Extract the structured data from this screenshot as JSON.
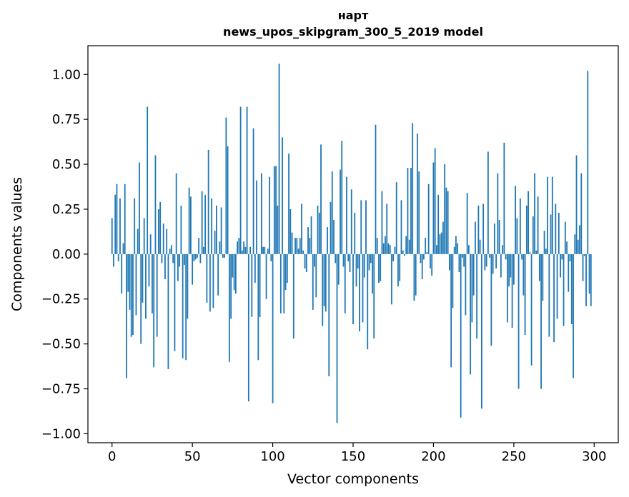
{
  "chart_data": {
    "type": "bar",
    "title": "нарт",
    "subtitle": "news_upos_skipgram_300_5_2019 model",
    "xlabel": "Vector components",
    "ylabel": "Components values",
    "xlim": [
      -15,
      315
    ],
    "ylim": [
      -1.05,
      1.16
    ],
    "xticks": [
      0,
      50,
      100,
      150,
      200,
      250,
      300
    ],
    "xtick_labels": [
      "0",
      "50",
      "100",
      "150",
      "200",
      "250",
      "300"
    ],
    "yticks": [
      -1.0,
      -0.75,
      -0.5,
      -0.25,
      0.0,
      0.25,
      0.5,
      0.75,
      1.0
    ],
    "ytick_labels": [
      "−1.00",
      "−0.75",
      "−0.50",
      "−0.25",
      "0.00",
      "0.25",
      "0.50",
      "0.75",
      "1.00"
    ],
    "grid": false,
    "bar_color": "#1f77b4",
    "values": [
      0.2,
      -0.07,
      0.33,
      0.39,
      -0.04,
      0.31,
      -0.22,
      0.06,
      0.39,
      -0.69,
      -0.21,
      -0.31,
      -0.46,
      -0.45,
      0.31,
      -0.34,
      0.14,
      0.51,
      -0.5,
      -0.27,
      0.2,
      -0.36,
      0.82,
      -0.18,
      0.11,
      -0.33,
      -0.63,
      0.55,
      -0.46,
      0.25,
      0.29,
      -0.05,
      0.17,
      -0.14,
      0.14,
      -0.64,
      0.03,
      0.05,
      -0.05,
      -0.54,
      0.45,
      -0.15,
      -0.07,
      0.27,
      -0.58,
      -0.06,
      -0.59,
      -0.36,
      0.37,
      0.32,
      -0.17,
      -0.04,
      -0.03,
      -0.02,
      0.09,
      -0.05,
      0.35,
      0.04,
      0.33,
      -0.27,
      0.58,
      -0.32,
      0.31,
      -0.3,
      0.13,
      0.27,
      -0.23,
      0.07,
      0.26,
      -0.02,
      -0.02,
      0.76,
      0.6,
      -0.6,
      -0.36,
      -0.13,
      -0.2,
      -0.22,
      0.07,
      0.09,
      0.82,
      0.02,
      0.07,
      0.04,
      0.82,
      -0.82,
      0.04,
      -0.35,
      0.7,
      -0.16,
      0.41,
      -0.59,
      -0.35,
      0.45,
      0.04,
      0.04,
      -0.25,
      0.03,
      0.43,
      -0.04,
      -0.83,
      0.49,
      0.49,
      0.27,
      1.06,
      -0.33,
      0.65,
      -0.33,
      -0.2,
      -0.16,
      0.56,
      0.25,
      0.12,
      -0.47,
      0.09,
      0.09,
      0.03,
      0.09,
      0.28,
      0.02,
      -0.08,
      -0.1,
      0.15,
      0.09,
      0.21,
      -0.31,
      -0.07,
      -0.24,
      0.27,
      0.23,
      0.61,
      -0.4,
      -0.29,
      -0.32,
      0.15,
      -0.68,
      0.29,
      0.46,
      0.19,
      -0.05,
      -0.94,
      -0.17,
      0.47,
      0.63,
      -0.07,
      -0.33,
      0.43,
      -0.04,
      -0.1,
      0.36,
      -0.39,
      0.23,
      -0.18,
      -0.08,
      -0.43,
      0.3,
      -0.38,
      -0.13,
      0.3,
      -0.53,
      -0.09,
      -0.05,
      -0.22,
      -0.47,
      0.72,
      0.09,
      -0.16,
      -0.15,
      0.35,
      0.06,
      0.1,
      0.28,
      0.06,
      0.05,
      -0.28,
      -0.04,
      0.04,
      0.4,
      -0.18,
      -0.15,
      0.3,
      0.02,
      -0.01,
      0.1,
      0.48,
      0.08,
      0.48,
      0.73,
      -0.26,
      -0.23,
      0.67,
      0.46,
      -0.05,
      -0.14,
      -0.03,
      0.09,
      0.01,
      0.39,
      -0.08,
      -0.12,
      0.51,
      0.59,
      0.05,
      0.33,
      0.11,
      0.12,
      0.18,
      0.5,
      0.37,
      0.35,
      -0.09,
      -0.63,
      -0.3,
      0.04,
      0.1,
      0.06,
      -0.1,
      -0.91,
      -0.02,
      -0.07,
      -0.34,
      0.34,
      0.05,
      -0.67,
      -0.38,
      -0.23,
      0.18,
      -0.47,
      0.27,
      0.08,
      -0.86,
      0.28,
      -0.09,
      -0.07,
      0.57,
      -0.02,
      -0.51,
      -0.11,
      0.17,
      -0.08,
      0.45,
      0.19,
      -0.13,
      0.05,
      0.62,
      -0.03,
      -0.38,
      -0.18,
      -0.13,
      -0.41,
      -0.17,
      0.38,
      0.2,
      -0.75,
      0.31,
      -0.03,
      -0.23,
      -0.45,
      0.27,
      0.35,
      0.01,
      -0.62,
      0.21,
      0.45,
      0.02,
      0.32,
      -0.15,
      -0.75,
      -0.26,
      0.13,
      0.03,
      0.43,
      -0.46,
      0.22,
      0.43,
      -0.49,
      0.28,
      -0.36,
      0.23,
      -0.13,
      -0.03,
      -0.4,
      0.18,
      0.07,
      -0.21,
      -0.04,
      -0.39,
      -0.69,
      0.11,
      0.55,
      0.08,
      0.16,
      0.45,
      -0.15,
      -0.01,
      -0.29,
      1.02,
      -0.22,
      -0.29
    ]
  }
}
